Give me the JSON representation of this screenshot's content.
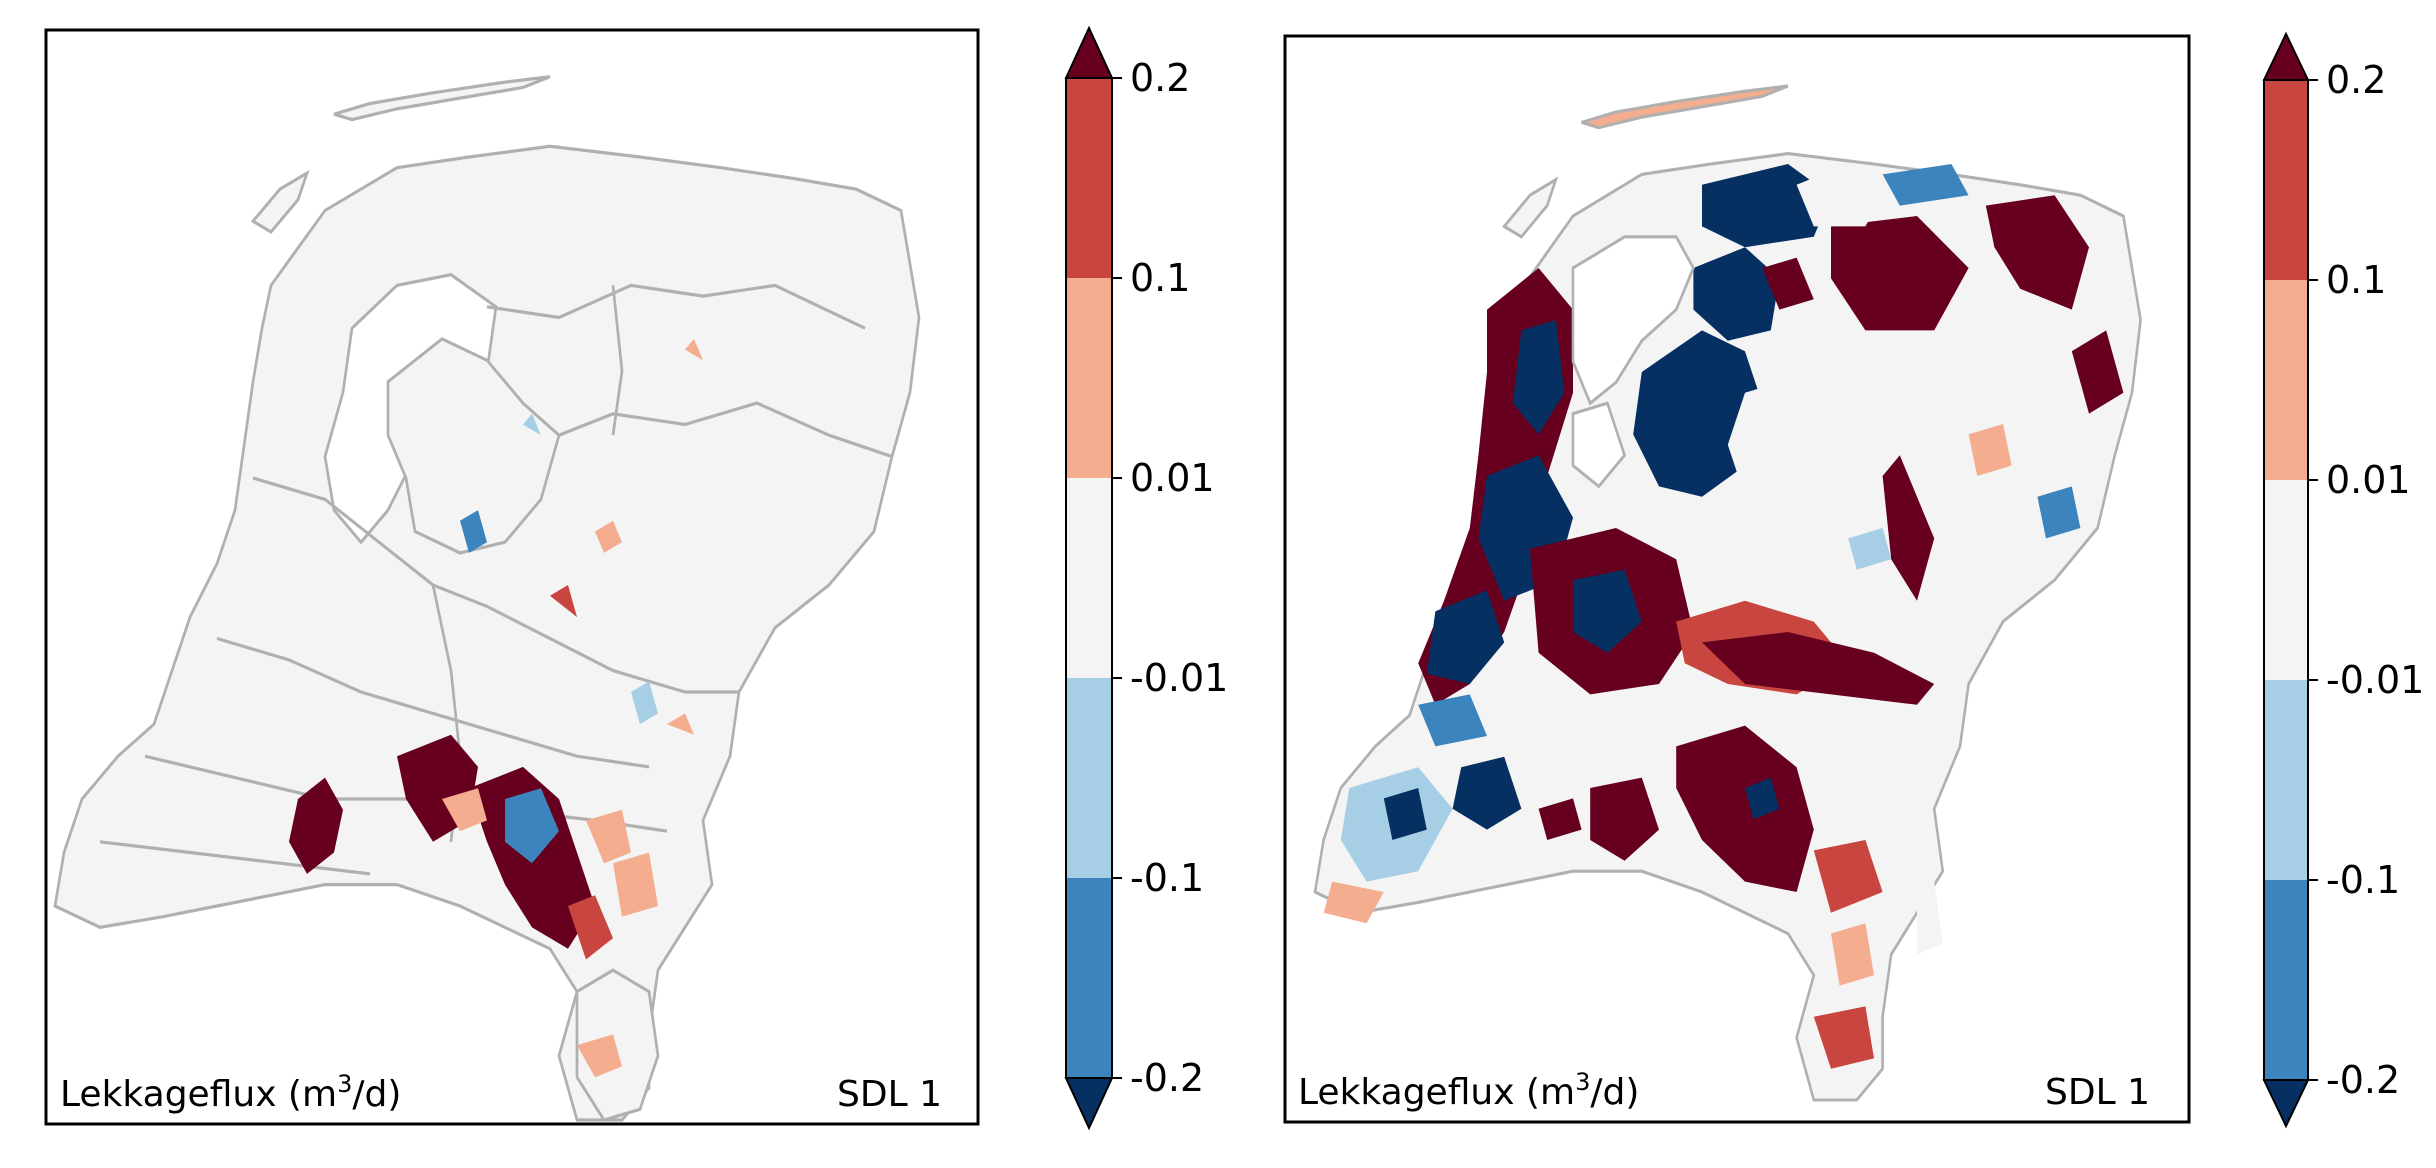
{
  "panels": [
    {
      "label_prefix": "Lekkageflux (m",
      "label_superscript": "3",
      "label_suffix": "/d)",
      "layer_label": "SDL 1",
      "colorbar": {
        "ticks": [
          "0.2",
          "0.1",
          "0.01",
          "-0.01",
          "-0.1",
          "-0.2"
        ]
      }
    },
    {
      "label_prefix": "Lekkageflux (m",
      "label_superscript": "3",
      "label_suffix": "/d)",
      "layer_label": "SDL 1",
      "colorbar": {
        "ticks": [
          "0.2",
          "0.1",
          "0.01",
          "-0.01",
          "-0.1",
          "-0.2"
        ]
      }
    }
  ],
  "colors": {
    "extend_high": "#67001f",
    "bin_0_1_to_0_2": "#c9453f",
    "bin_0_01_to_0_1": "#f4ad8f",
    "bin_neutral": "#f4f4f4",
    "bin_neg_0_01_to_neg_0_1": "#a6cfe5",
    "bin_neg_0_1_to_neg_0_2": "#3c84bd",
    "extend_low": "#053061",
    "land": "#f4f4f4",
    "border": "#b0b0b0"
  }
}
